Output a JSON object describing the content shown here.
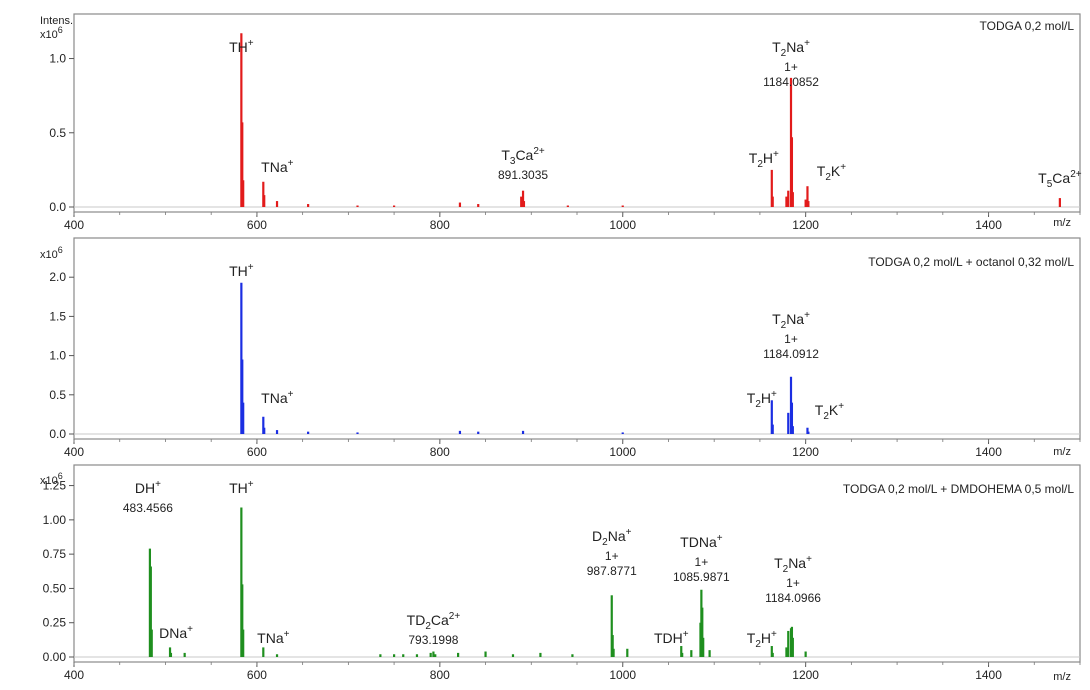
{
  "panels": [
    {
      "y_axis_label": "Intens.",
      "y_multiplier": "x10",
      "y_multiplier_exp": "6",
      "title": "TODGA 0,2 mol/L",
      "x_unit": "m/z",
      "color": "#e21b1b",
      "annotations": [
        {
          "lines": [
            {
              "base": "TH",
              "sup": "+"
            }
          ],
          "x": 583
        },
        {
          "lines": [
            {
              "base": "TNa",
              "sup": "+"
            }
          ],
          "x": 607
        },
        {
          "lines": [
            {
              "base": "T",
              "sub": "3",
              "tail": "Ca",
              "sup": "2+"
            },
            {
              "mz": "891.3035"
            }
          ],
          "x": 891
        },
        {
          "lines": [
            {
              "base": "T",
              "sub": "2",
              "tail": "H",
              "sup": "+"
            }
          ],
          "x": 1163
        },
        {
          "lines": [
            {
              "base": "T",
              "sub": "2",
              "tail": "Na",
              "sup": "+"
            },
            {
              "mz": "1+"
            },
            {
              "mz": "1184.0852"
            }
          ],
          "x": 1184
        },
        {
          "lines": [
            {
              "base": "T",
              "sub": "2",
              "tail": "K",
              "sup": "+"
            }
          ],
          "x": 1202
        },
        {
          "lines": [
            {
              "base": "T",
              "sub": "5",
              "tail": "Ca",
              "sup": "2+"
            }
          ],
          "x": 1478
        }
      ]
    },
    {
      "y_multiplier": "x10",
      "y_multiplier_exp": "6",
      "title": "TODGA 0,2 mol/L + octanol 0,32 mol/L",
      "x_unit": "m/z",
      "color": "#1b2ee2",
      "annotations": [
        {
          "lines": [
            {
              "base": "TH",
              "sup": "+"
            }
          ],
          "x": 583
        },
        {
          "lines": [
            {
              "base": "TNa",
              "sup": "+"
            }
          ],
          "x": 607
        },
        {
          "lines": [
            {
              "base": "T",
              "sub": "2",
              "tail": "H",
              "sup": "+"
            }
          ],
          "x": 1163
        },
        {
          "lines": [
            {
              "base": "T",
              "sub": "2",
              "tail": "Na",
              "sup": "+"
            },
            {
              "mz": "1+"
            },
            {
              "mz": "1184.0912"
            }
          ],
          "x": 1184
        },
        {
          "lines": [
            {
              "base": "T",
              "sub": "2",
              "tail": "K",
              "sup": "+"
            }
          ],
          "x": 1202
        }
      ]
    },
    {
      "y_multiplier": "x10",
      "y_multiplier_exp": "6",
      "title": "TODGA 0,2 mol/L + DMDOHEMA 0,5 mol/L",
      "x_unit": "m/z",
      "color": "#1f8f1f",
      "annotations": [
        {
          "lines": [
            {
              "base": "DH",
              "sup": "+"
            },
            {
              "mz": "483.4566"
            }
          ],
          "x": 483
        },
        {
          "lines": [
            {
              "base": "DNa",
              "sup": "+"
            }
          ],
          "x": 505
        },
        {
          "lines": [
            {
              "base": "TH",
              "sup": "+"
            }
          ],
          "x": 583
        },
        {
          "lines": [
            {
              "base": "TNa",
              "sup": "+"
            }
          ],
          "x": 607
        },
        {
          "lines": [
            {
              "base": "TD",
              "sub": "2",
              "tail": "Ca",
              "sup": "2+"
            },
            {
              "mz": "793.1998"
            }
          ],
          "x": 793
        },
        {
          "lines": [
            {
              "base": "D",
              "sub": "2",
              "tail": "Na",
              "sup": "+"
            },
            {
              "mz": "1+"
            },
            {
              "mz": "987.8771"
            }
          ],
          "x": 988
        },
        {
          "lines": [
            {
              "base": "TDH",
              "sup": "+"
            }
          ],
          "x": 1064
        },
        {
          "lines": [
            {
              "base": "TDNa",
              "sup": "+"
            },
            {
              "mz": "1+"
            },
            {
              "mz": "1085.9871"
            }
          ],
          "x": 1086
        },
        {
          "lines": [
            {
              "base": "T",
              "sub": "2",
              "tail": "H",
              "sup": "+"
            }
          ],
          "x": 1163
        },
        {
          "lines": [
            {
              "base": "T",
              "sub": "2",
              "tail": "Na",
              "sup": "+"
            },
            {
              "mz": "1+"
            },
            {
              "mz": "1184.0966"
            }
          ],
          "x": 1184
        }
      ]
    }
  ],
  "chart_data": [
    {
      "type": "bar",
      "title": "TODGA 0,2 mol/L",
      "xlabel": "m/z",
      "ylabel": "Intens. x10^6",
      "xlim": [
        400,
        1500
      ],
      "ylim": [
        0,
        1.3
      ],
      "x_ticks": [
        400,
        600,
        800,
        1000,
        1200,
        1400
      ],
      "y_ticks": [
        0.0,
        0.5,
        1.0
      ],
      "y_tick_labels": [
        "0.0",
        "0.5",
        "1.0"
      ],
      "x_tick_labels": [
        "400",
        "600",
        "800",
        "1000",
        "1200",
        "1400"
      ],
      "color": "#e21b1b",
      "x": [
        583,
        584,
        585,
        607,
        608,
        622,
        656,
        710,
        750,
        822,
        842,
        889,
        891,
        892,
        940,
        1000,
        1163,
        1164,
        1179,
        1181,
        1184,
        1185,
        1186,
        1200,
        1202,
        1203,
        1478
      ],
      "y": [
        1.17,
        0.57,
        0.18,
        0.17,
        0.08,
        0.04,
        0.02,
        0.01,
        0.01,
        0.03,
        0.02,
        0.07,
        0.11,
        0.04,
        0.01,
        0.01,
        0.25,
        0.07,
        0.07,
        0.11,
        0.87,
        0.47,
        0.1,
        0.05,
        0.14,
        0.04,
        0.06
      ]
    },
    {
      "type": "bar",
      "title": "TODGA 0,2 mol/L + octanol 0,32 mol/L",
      "xlabel": "m/z",
      "ylabel": "x10^6",
      "xlim": [
        400,
        1500
      ],
      "ylim": [
        0,
        2.5
      ],
      "x_ticks": [
        400,
        600,
        800,
        1000,
        1200,
        1400
      ],
      "y_ticks": [
        0.0,
        0.5,
        1.0,
        1.5,
        2.0
      ],
      "y_tick_labels": [
        "0.0",
        "0.5",
        "1.0",
        "1.5",
        "2.0"
      ],
      "x_tick_labels": [
        "400",
        "600",
        "800",
        "1000",
        "1200",
        "1400"
      ],
      "color": "#1b2ee2",
      "x": [
        583,
        584,
        585,
        607,
        608,
        622,
        656,
        710,
        822,
        842,
        891,
        1000,
        1163,
        1164,
        1181,
        1184,
        1185,
        1186,
        1202,
        1203
      ],
      "y": [
        1.93,
        0.95,
        0.4,
        0.22,
        0.08,
        0.05,
        0.03,
        0.02,
        0.04,
        0.03,
        0.04,
        0.02,
        0.43,
        0.12,
        0.27,
        0.73,
        0.4,
        0.1,
        0.08,
        0.03
      ]
    },
    {
      "type": "bar",
      "title": "TODGA 0,2 mol/L + DMDOHEMA 0,5 mol/L",
      "xlabel": "m/z",
      "ylabel": "x10^6",
      "xlim": [
        400,
        1500
      ],
      "ylim": [
        0,
        1.4
      ],
      "x_ticks": [
        400,
        600,
        800,
        1000,
        1200,
        1400
      ],
      "y_ticks": [
        0.0,
        0.25,
        0.5,
        0.75,
        1.0,
        1.25
      ],
      "y_tick_labels": [
        "0.00",
        "0.25",
        "0.50",
        "0.75",
        "1.00",
        "1.25"
      ],
      "x_tick_labels": [
        "400",
        "600",
        "800",
        "1000",
        "1200",
        "1400"
      ],
      "color": "#1f8f1f",
      "x": [
        483,
        484,
        485,
        505,
        506,
        521,
        583,
        584,
        585,
        607,
        622,
        735,
        750,
        760,
        775,
        790,
        793,
        795,
        820,
        850,
        880,
        910,
        945,
        988,
        989,
        990,
        1005,
        1064,
        1065,
        1075,
        1085,
        1086,
        1087,
        1088,
        1095,
        1163,
        1164,
        1179,
        1181,
        1184,
        1185,
        1186,
        1200
      ],
      "y": [
        0.79,
        0.66,
        0.2,
        0.07,
        0.03,
        0.03,
        1.09,
        0.53,
        0.2,
        0.07,
        0.02,
        0.02,
        0.02,
        0.02,
        0.02,
        0.03,
        0.04,
        0.02,
        0.03,
        0.04,
        0.02,
        0.03,
        0.02,
        0.45,
        0.16,
        0.06,
        0.06,
        0.08,
        0.03,
        0.05,
        0.25,
        0.49,
        0.36,
        0.14,
        0.05,
        0.08,
        0.03,
        0.07,
        0.19,
        0.21,
        0.22,
        0.14,
        0.04
      ]
    }
  ]
}
